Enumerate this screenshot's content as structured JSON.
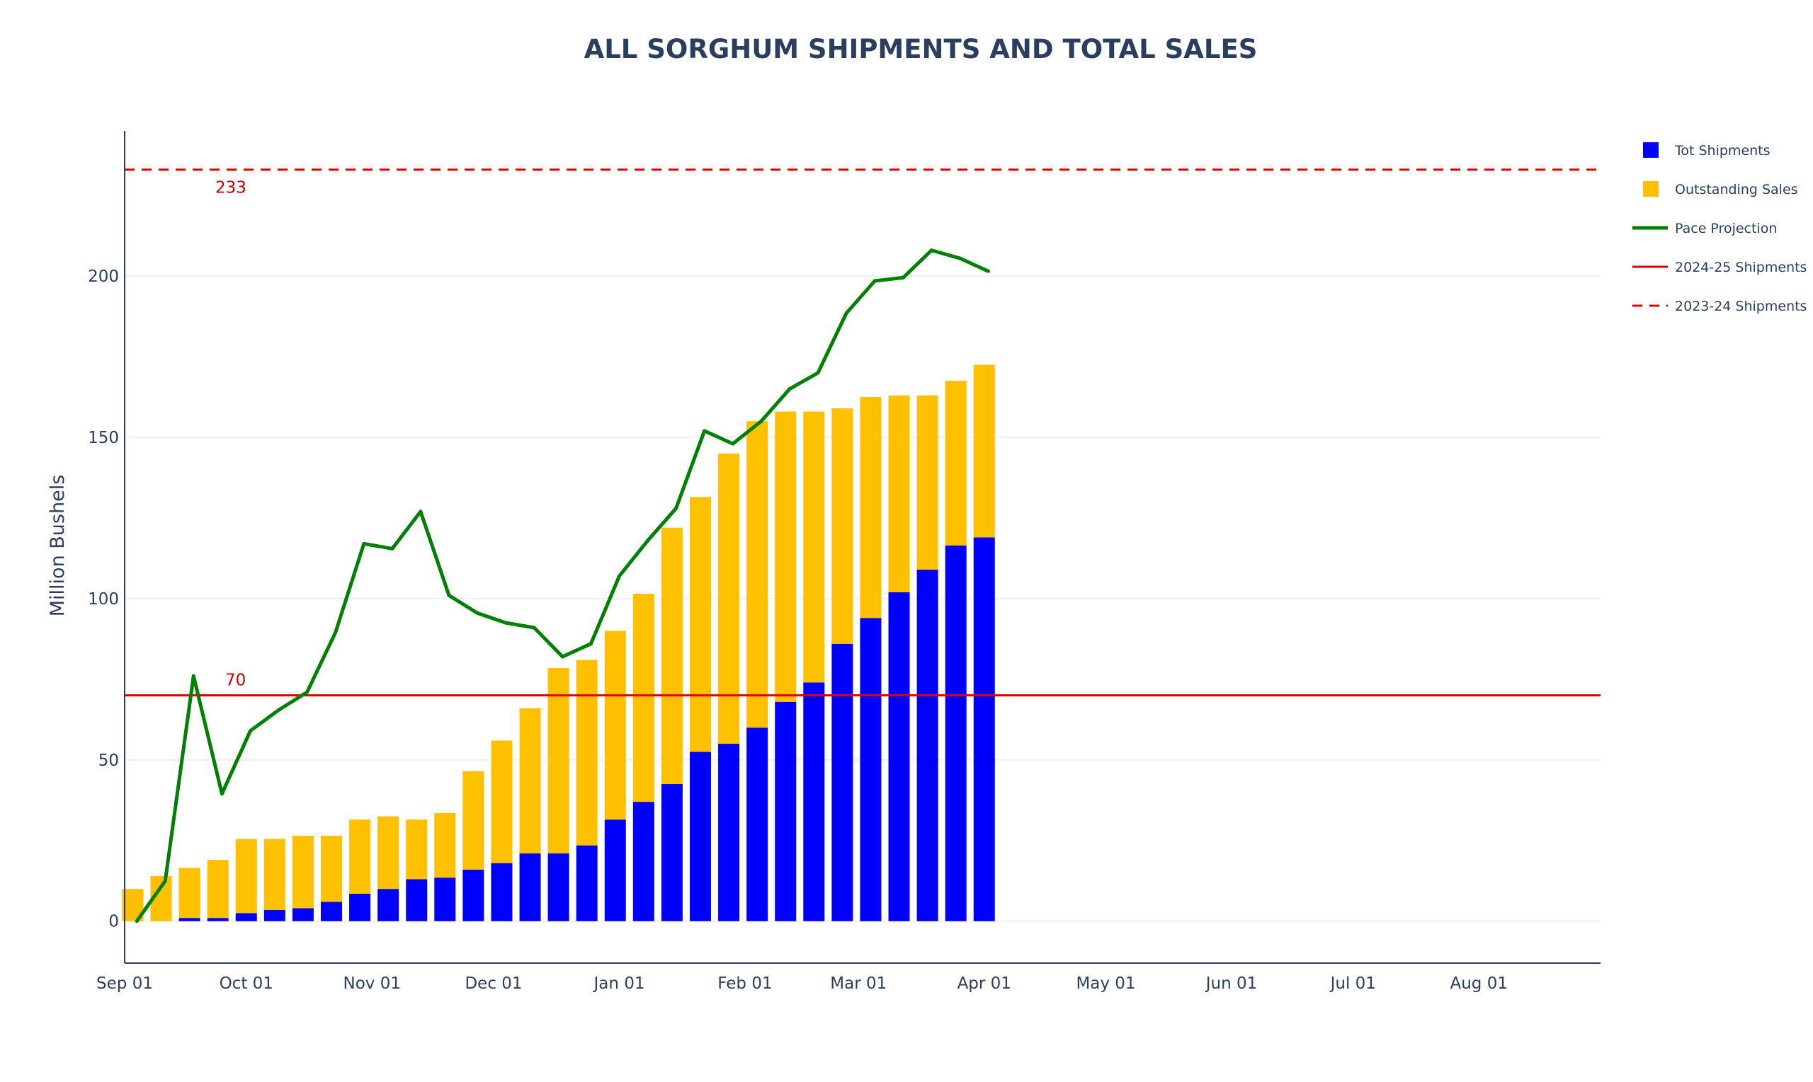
{
  "chart_data": {
    "type": "bar",
    "title": "ALL SORGHUM SHIPMENTS AND TOTAL SALES",
    "xlabel": "",
    "ylabel": "Million Bushels",
    "ylim": [
      -13,
      245
    ],
    "xlim": [
      "2024-09-01",
      "2025-08-31"
    ],
    "yticks": [
      0,
      50,
      100,
      150,
      200
    ],
    "xticks": [
      {
        "date": "2024-09-01",
        "label": "Sep 01"
      },
      {
        "date": "2024-10-01",
        "label": "Oct 01"
      },
      {
        "date": "2024-11-01",
        "label": "Nov 01"
      },
      {
        "date": "2024-12-01",
        "label": "Dec 01"
      },
      {
        "date": "2025-01-01",
        "label": "Jan 01"
      },
      {
        "date": "2025-02-01",
        "label": "Feb 01"
      },
      {
        "date": "2025-03-01",
        "label": "Mar 01"
      },
      {
        "date": "2025-04-01",
        "label": "Apr 01"
      },
      {
        "date": "2025-05-01",
        "label": "May 01"
      },
      {
        "date": "2025-06-01",
        "label": "Jun 01"
      },
      {
        "date": "2025-07-01",
        "label": "Jul 01"
      },
      {
        "date": "2025-08-01",
        "label": "Aug 01"
      }
    ],
    "grid": true,
    "legend_placement": "right",
    "weeks": [
      "2024-09-03",
      "2024-09-10",
      "2024-09-17",
      "2024-09-24",
      "2024-10-01",
      "2024-10-08",
      "2024-10-15",
      "2024-10-22",
      "2024-10-29",
      "2024-11-05",
      "2024-11-12",
      "2024-11-19",
      "2024-11-26",
      "2024-12-03",
      "2024-12-10",
      "2024-12-17",
      "2024-12-24",
      "2024-12-31",
      "2025-01-07",
      "2025-01-14",
      "2025-01-21",
      "2025-01-28",
      "2025-02-04",
      "2025-02-11",
      "2025-02-18",
      "2025-02-25",
      "2025-03-04",
      "2025-03-11",
      "2025-03-18",
      "2025-03-25",
      "2025-04-01",
      "2025-04-08"
    ],
    "series": [
      {
        "name": "Tot Shipments",
        "type": "bar",
        "color": "#0000ff",
        "values": [
          0,
          0,
          1,
          1,
          2.5,
          3.5,
          4,
          6,
          8.5,
          10,
          13,
          13.5,
          16,
          18,
          21,
          21,
          23.5,
          31.5,
          37,
          42.5,
          52.5,
          55,
          60,
          68,
          74,
          86,
          94,
          102,
          109,
          116.5,
          119,
          null
        ]
      },
      {
        "name": "Outstanding Sales",
        "type": "bar",
        "color": "#ffc000",
        "values": [
          10,
          14,
          15.5,
          18,
          23,
          22,
          22.5,
          20.5,
          23,
          22.5,
          18.5,
          20,
          30.5,
          38,
          45,
          57.5,
          57.5,
          58.5,
          64.5,
          79.5,
          79,
          90,
          95,
          90,
          84,
          73,
          68.5,
          61,
          54,
          51,
          53.5,
          null
        ]
      },
      {
        "name": "Pace Projection",
        "type": "line",
        "color": "#008000",
        "dates": [
          "2024-09-04",
          "2024-09-11",
          "2024-09-18",
          "2024-09-25",
          "2024-10-02",
          "2024-10-09",
          "2024-10-16",
          "2024-10-23",
          "2024-10-30",
          "2024-11-06",
          "2024-11-13",
          "2024-11-20",
          "2024-11-27",
          "2024-12-04",
          "2024-12-11",
          "2024-12-18",
          "2024-12-25",
          "2025-01-01",
          "2025-01-08",
          "2025-01-15",
          "2025-01-22",
          "2025-01-29",
          "2025-02-05",
          "2025-02-12",
          "2025-02-19",
          "2025-02-26",
          "2025-03-05",
          "2025-03-12",
          "2025-03-19",
          "2025-03-26",
          "2025-04-02"
        ],
        "values": [
          0,
          12.5,
          76,
          39.5,
          59,
          65.5,
          71,
          89.5,
          117,
          115.5,
          127,
          101,
          95.5,
          92.5,
          91,
          82,
          86,
          107,
          118,
          128,
          152,
          148,
          155,
          165,
          170,
          188.5,
          198.5,
          199.5,
          208,
          205.5,
          201.5
        ]
      },
      {
        "name": "2024-25 Shipments",
        "type": "hline",
        "color": "#dd0000",
        "value": 70,
        "label": "70"
      },
      {
        "name": "2023-24 Shipments",
        "type": "hline-dashed",
        "color": "#dd0000",
        "value": 233,
        "label": "233"
      }
    ]
  }
}
